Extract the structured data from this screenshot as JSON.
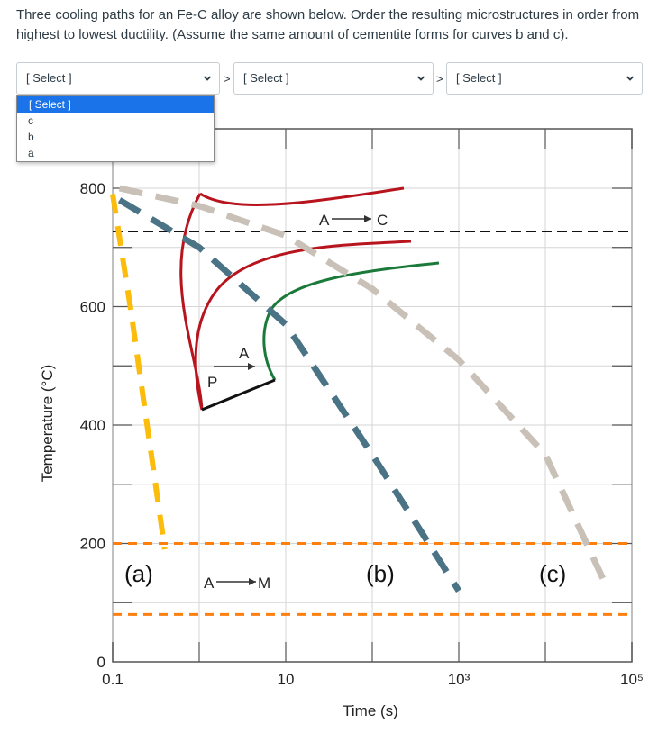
{
  "question": "Three cooling paths for an Fe-C alloy are shown below.  Order the resulting microstructures in order from highest to lowest ductility.  (Assume the same amount of cementite forms for curves b and c).",
  "selects": [
    {
      "value": "[ Select ]"
    },
    {
      "value": "[ Select ]"
    },
    {
      "value": "[ Select ]"
    }
  ],
  "separators": [
    ">",
    ">"
  ],
  "dropdown_options": [
    "[ Select ]",
    "c",
    "b",
    "a"
  ],
  "colors": {
    "accent": "#1a73e8",
    "curve_a": "#fbbc0c",
    "curve_b": "#4b7386",
    "curve_c": "#c9c1b7",
    "pearlite_curves": "#b8141e",
    "bainite_curve": "#1b7a3a",
    "isotherm": "#ff7f0e"
  },
  "icons": {
    "chevron": "chevron-down-icon"
  },
  "chart_data": {
    "type": "line",
    "xlabel": "Time (s)",
    "ylabel": "Temperature (°C)",
    "x_scale": "log",
    "xlim": [
      0.1,
      100000
    ],
    "ylim": [
      0,
      800
    ],
    "x_tick_labels": [
      {
        "label": "0.1",
        "x": 0.1
      },
      {
        "label": "10",
        "x": 10
      },
      {
        "label": "10³",
        "x": 1000
      },
      {
        "label": "10⁵",
        "x": 100000
      }
    ],
    "y_tick_labels": [
      {
        "label": "0",
        "y": 0
      },
      {
        "label": "200",
        "y": 200
      },
      {
        "label": "400",
        "y": 400
      },
      {
        "label": "600",
        "y": 600
      },
      {
        "label": "800",
        "y": 800
      }
    ],
    "grid": true,
    "reference_lines": [
      {
        "name": "eutectoid",
        "y": 727,
        "style": "dashed-black"
      },
      {
        "name": "Ms",
        "y": 200,
        "style": "dashed-orange"
      },
      {
        "name": "Mf",
        "y": 80,
        "style": "dashed-orange"
      }
    ],
    "series": [
      {
        "name": "(a)",
        "x": [
          0.1,
          0.16,
          0.25,
          0.4
        ],
        "y": [
          790,
          600,
          400,
          190
        ]
      },
      {
        "name": "(b)",
        "x": [
          0.12,
          1,
          10,
          100,
          1000
        ],
        "y": [
          780,
          700,
          570,
          350,
          120
        ]
      },
      {
        "name": "(c)",
        "x": [
          0.12,
          1,
          10,
          100,
          1000,
          10000,
          50000
        ],
        "y": [
          800,
          770,
          720,
          630,
          510,
          350,
          130
        ]
      }
    ],
    "annotations": [
      {
        "text": "A",
        "x": 1000,
        "y": 745
      },
      {
        "text": "C",
        "x": 6000,
        "y": 745
      },
      {
        "text": "A",
        "x": 6,
        "y": 520
      },
      {
        "text": "P",
        "x": 1.7,
        "y": 495
      },
      {
        "text": "A",
        "x": 1.6,
        "y": 130
      },
      {
        "text": "M",
        "x": 20,
        "y": 130
      }
    ]
  }
}
